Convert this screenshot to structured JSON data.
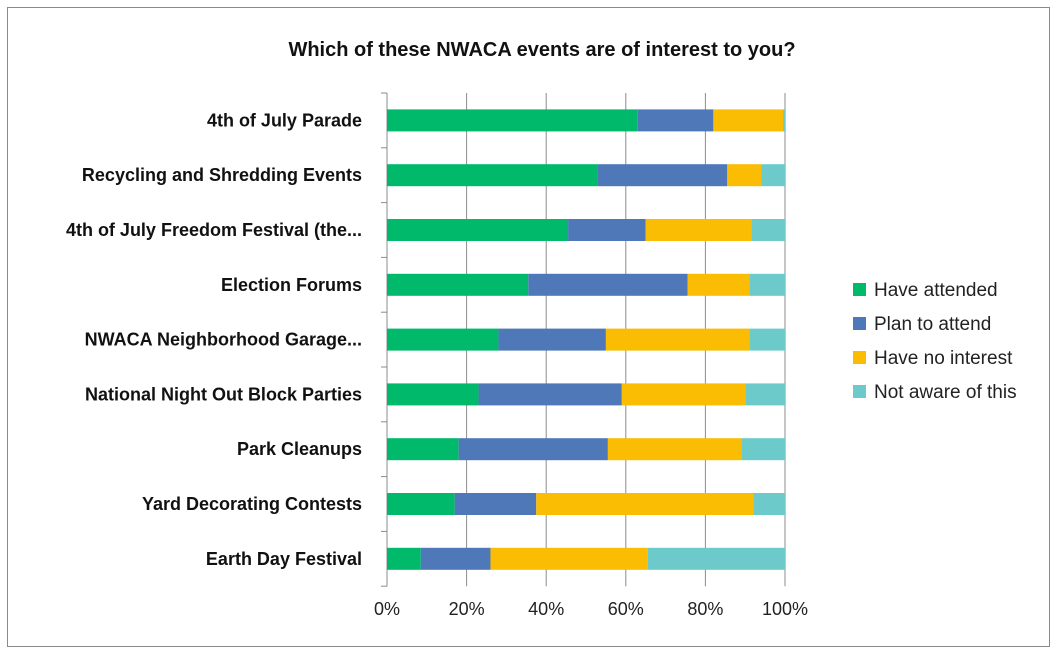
{
  "chart_data": {
    "type": "bar",
    "orientation": "horizontal",
    "stacked": "percent",
    "title": "Which of these NWACA events are of interest to you?",
    "xlabel": "",
    "ylabel": "",
    "xlim": [
      0,
      100
    ],
    "x_ticks": [
      "0%",
      "20%",
      "40%",
      "60%",
      "80%",
      "100%"
    ],
    "grid": "vertical",
    "legend_position": "right",
    "categories": [
      "4th of July Parade",
      "Recycling and Shredding Events",
      "4th of July Freedom Festival (the...",
      "Election Forums",
      "NWACA Neighborhood Garage...",
      "National Night Out Block Parties",
      "Park Cleanups",
      "Yard Decorating Contests",
      "Earth Day Festival"
    ],
    "series": [
      {
        "name": "Have attended",
        "color": "#00b96b",
        "values": [
          63,
          53,
          45.5,
          35.5,
          28,
          23,
          18,
          17,
          8.5
        ]
      },
      {
        "name": "Plan to attend",
        "color": "#4e78b8",
        "values": [
          19,
          32.5,
          19.5,
          40,
          27,
          36,
          37.5,
          20.5,
          17.5
        ]
      },
      {
        "name": "Have no interest",
        "color": "#fbbc04",
        "values": [
          17.5,
          8.5,
          26.5,
          15.5,
          36,
          31,
          33.5,
          54.5,
          39.5
        ]
      },
      {
        "name": "Not aware of this",
        "color": "#6ccacb",
        "values": [
          0.5,
          6,
          8.5,
          9,
          9,
          10,
          11,
          8,
          34.5
        ]
      }
    ]
  }
}
